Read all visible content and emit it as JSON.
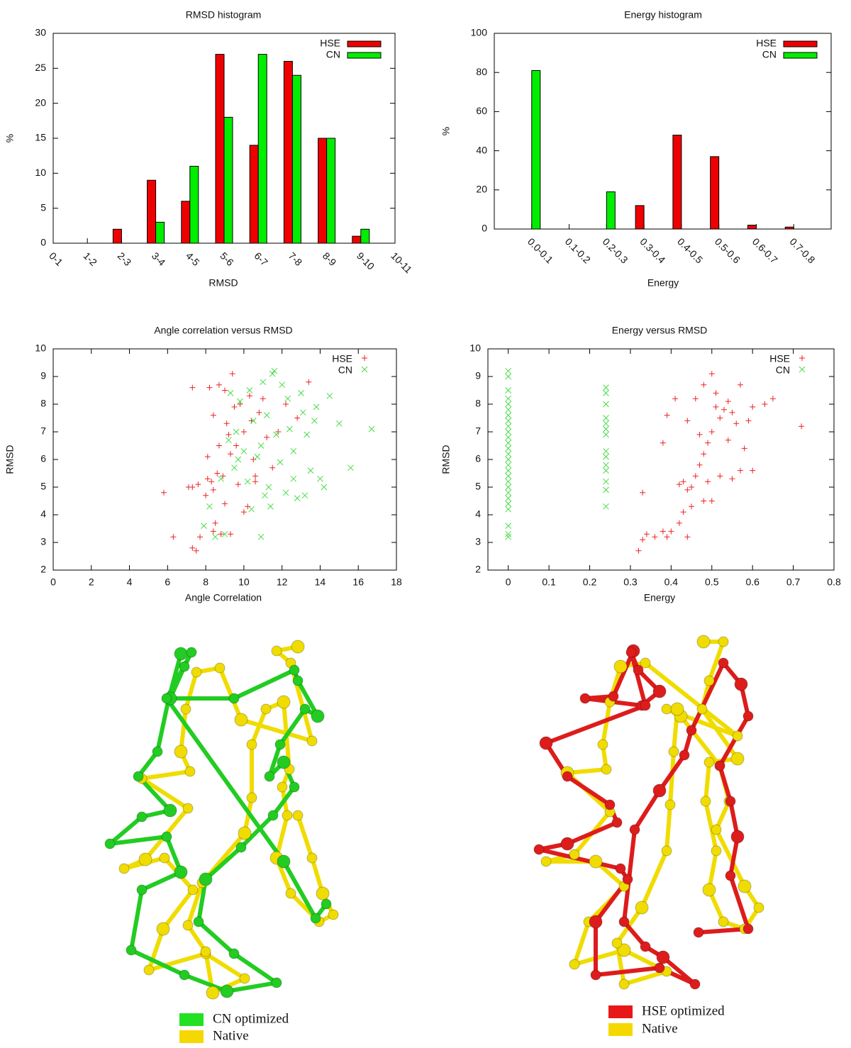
{
  "chart_data": [
    {
      "type": "bar",
      "title": "RMSD histogram",
      "xlabel": "RMSD",
      "ylabel": "%",
      "categories": [
        "0-1",
        "1-2",
        "2-3",
        "3-4",
        "4-5",
        "5-6",
        "6-7",
        "7-8",
        "8-9",
        "9-10",
        "10-11"
      ],
      "series": [
        {
          "name": "HSE",
          "color": "#ee0000",
          "values": [
            0,
            0,
            2,
            9,
            6,
            27,
            14,
            26,
            15,
            1,
            0
          ]
        },
        {
          "name": "CN",
          "color": "#00ee00",
          "values": [
            0,
            0,
            0,
            3,
            11,
            18,
            27,
            24,
            15,
            2,
            0
          ]
        }
      ],
      "ylim": [
        0,
        30
      ],
      "yticks": [
        0,
        5,
        10,
        15,
        20,
        25,
        30
      ],
      "legend": "top-right"
    },
    {
      "type": "bar",
      "title": "Energy histogram",
      "xlabel": "Energy",
      "ylabel": "%",
      "categories": [
        "0.0-0.1",
        "0.1-0.2",
        "0.2-0.3",
        "0.3-0.4",
        "0.4-0.5",
        "0.5-0.6",
        "0.6-0.7",
        "0.7-0.8"
      ],
      "series": [
        {
          "name": "HSE",
          "color": "#ee0000",
          "values": [
            0,
            0,
            0,
            12,
            48,
            37,
            2,
            1
          ]
        },
        {
          "name": "CN",
          "color": "#00ee00",
          "values": [
            81,
            0,
            19,
            0,
            0,
            0,
            0,
            0
          ]
        }
      ],
      "ylim": [
        0,
        100
      ],
      "yticks": [
        0,
        20,
        40,
        60,
        80,
        100
      ],
      "legend": "top-right"
    },
    {
      "type": "scatter",
      "title": "Angle correlation versus RMSD",
      "xlabel": "Angle Correlation",
      "ylabel": "RMSD",
      "series": [
        {
          "name": "HSE",
          "color": "#ee2222",
          "marker": "+",
          "x": [
            5.8,
            6.3,
            7.1,
            7.3,
            7.3,
            7.5,
            7.7,
            7.6,
            8.0,
            8.1,
            8.2,
            8.3,
            8.4,
            8.4,
            8.5,
            8.6,
            8.7,
            8.8,
            8.9,
            9.0,
            9.1,
            9.2,
            9.3,
            9.4,
            9.5,
            9.6,
            9.7,
            9.8,
            10.0,
            10.0,
            10.2,
            10.3,
            10.4,
            10.5,
            10.6,
            10.8,
            11.0,
            11.2,
            11.5,
            11.8,
            12.2,
            12.8,
            13.4,
            8.1,
            8.7,
            9.0,
            7.3,
            8.4,
            9.3,
            10.6
          ],
          "values": [
            4.8,
            3.2,
            5.0,
            8.6,
            2.8,
            2.7,
            3.2,
            5.1,
            4.7,
            5.3,
            8.6,
            5.2,
            3.4,
            7.6,
            3.7,
            5.5,
            8.7,
            3.3,
            5.4,
            8.5,
            7.3,
            6.9,
            6.2,
            9.1,
            7.9,
            6.5,
            5.1,
            8.0,
            7.0,
            4.1,
            4.3,
            8.3,
            7.4,
            6.0,
            5.4,
            7.7,
            8.2,
            6.8,
            5.7,
            7.0,
            8.0,
            7.5,
            8.8,
            6.1,
            6.5,
            4.4,
            5.0,
            4.9,
            3.3,
            5.2
          ]
        },
        {
          "name": "CN",
          "color": "#44dd44",
          "marker": "x",
          "x": [
            7.9,
            8.2,
            8.5,
            9.0,
            8.8,
            9.2,
            9.3,
            9.5,
            9.6,
            9.8,
            10.0,
            10.2,
            10.4,
            10.5,
            10.7,
            10.9,
            11.0,
            11.2,
            11.3,
            11.4,
            11.5,
            11.6,
            11.7,
            11.9,
            12.0,
            12.2,
            12.4,
            12.6,
            12.8,
            13.0,
            13.1,
            13.3,
            13.5,
            13.7,
            13.8,
            14.0,
            14.2,
            14.5,
            15.0,
            15.6,
            16.7,
            12.3,
            10.9,
            11.1,
            12.6,
            13.2,
            10.3,
            9.7
          ],
          "values": [
            3.6,
            4.3,
            3.2,
            3.3,
            5.3,
            6.7,
            8.4,
            5.7,
            7.0,
            8.1,
            6.3,
            5.2,
            4.2,
            7.4,
            6.1,
            3.2,
            8.8,
            7.6,
            5.0,
            4.3,
            9.1,
            9.2,
            6.9,
            5.9,
            8.7,
            4.8,
            7.1,
            6.3,
            4.6,
            8.4,
            7.7,
            6.9,
            5.6,
            7.4,
            7.9,
            5.3,
            5.0,
            8.3,
            7.3,
            5.7,
            7.1,
            8.2,
            6.5,
            4.7,
            5.3,
            4.7,
            8.5,
            6.0
          ]
        }
      ],
      "xlim": [
        0,
        18
      ],
      "xticks": [
        0,
        2,
        4,
        6,
        8,
        10,
        12,
        14,
        16,
        18
      ],
      "ylim": [
        2,
        10
      ],
      "yticks": [
        2,
        3,
        4,
        5,
        6,
        7,
        8,
        9,
        10
      ],
      "legend": "top-right"
    },
    {
      "type": "scatter",
      "title": "Energy versus RMSD",
      "xlabel": "Energy",
      "ylabel": "RMSD",
      "series": [
        {
          "name": "HSE",
          "color": "#ee2222",
          "marker": "+",
          "x": [
            0.32,
            0.33,
            0.34,
            0.36,
            0.38,
            0.39,
            0.4,
            0.33,
            0.38,
            0.39,
            0.41,
            0.42,
            0.43,
            0.43,
            0.44,
            0.45,
            0.45,
            0.46,
            0.46,
            0.47,
            0.48,
            0.48,
            0.48,
            0.49,
            0.5,
            0.5,
            0.5,
            0.51,
            0.52,
            0.52,
            0.53,
            0.54,
            0.54,
            0.55,
            0.56,
            0.57,
            0.57,
            0.58,
            0.59,
            0.6,
            0.6,
            0.63,
            0.65,
            0.72,
            0.42,
            0.44,
            0.47,
            0.51,
            0.55,
            0.49,
            0.44
          ],
          "values": [
            2.7,
            3.1,
            3.3,
            3.2,
            3.4,
            3.2,
            3.4,
            4.8,
            6.6,
            7.6,
            8.2,
            3.7,
            4.1,
            5.2,
            7.4,
            5.0,
            4.3,
            5.4,
            8.2,
            5.8,
            6.2,
            8.7,
            4.5,
            6.6,
            4.5,
            9.1,
            7.0,
            8.4,
            7.5,
            5.4,
            7.8,
            6.7,
            8.1,
            7.7,
            7.3,
            8.7,
            5.6,
            6.4,
            7.4,
            5.6,
            7.9,
            8.0,
            8.2,
            7.2,
            5.1,
            4.9,
            6.9,
            7.9,
            5.3,
            5.2,
            3.2
          ]
        },
        {
          "name": "CN",
          "color": "#44dd44",
          "marker": "x",
          "x": [
            0,
            0,
            0,
            0,
            0,
            0,
            0,
            0,
            0,
            0,
            0,
            0,
            0,
            0,
            0,
            0,
            0,
            0,
            0,
            0,
            0,
            0,
            0,
            0,
            0,
            0,
            0,
            0.24,
            0.24,
            0.24,
            0.24,
            0.24,
            0.24,
            0.24,
            0.24,
            0.24,
            0.24,
            0.24,
            0.24,
            0.24,
            0.24
          ],
          "values": [
            3.2,
            3.3,
            3.6,
            4.2,
            4.4,
            4.6,
            4.8,
            5.0,
            5.2,
            5.4,
            5.6,
            5.8,
            6.0,
            6.2,
            6.4,
            6.6,
            6.8,
            7.0,
            7.2,
            7.4,
            7.6,
            7.8,
            8.0,
            8.2,
            8.5,
            9.0,
            9.2,
            4.3,
            4.9,
            5.2,
            5.6,
            5.8,
            6.1,
            6.3,
            6.9,
            7.1,
            7.3,
            7.5,
            8.0,
            8.4,
            8.6
          ]
        }
      ],
      "xlim": [
        -0.05,
        0.8
      ],
      "xticks": [
        0,
        0.1,
        0.2,
        0.3,
        0.4,
        0.5,
        0.6,
        0.7,
        0.8
      ],
      "ylim": [
        2,
        10
      ],
      "yticks": [
        2,
        3,
        4,
        5,
        6,
        7,
        8,
        9,
        10
      ],
      "legend": "top-right"
    }
  ],
  "structures": [
    {
      "legend": [
        {
          "label": "CN optimized",
          "color": "#22e022"
        },
        {
          "label": "Native",
          "color": "#f5d800"
        }
      ]
    },
    {
      "legend": [
        {
          "label": "HSE optimized",
          "color": "#e81818"
        },
        {
          "label": "Native",
          "color": "#f5d800"
        }
      ]
    }
  ]
}
